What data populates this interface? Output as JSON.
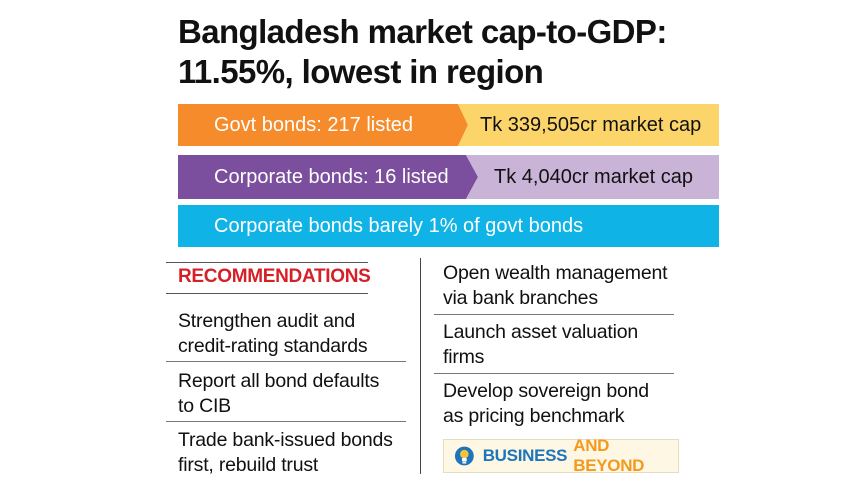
{
  "headline": {
    "line1": "Bangladesh market cap-to-GDP:",
    "line2": "11.55%, lowest in region"
  },
  "bars": {
    "govt": {
      "label": "Govt bonds: 217 listed",
      "value": "Tk 339,505cr market cap"
    },
    "corporate": {
      "label": "Corporate bonds: 16 listed",
      "value": "Tk 4,040cr market cap"
    },
    "share": {
      "label": "Corporate bonds barely 1% of govt bonds"
    }
  },
  "colors": {
    "govt_label": "#f68b2b",
    "govt_value": "#fbd56a",
    "corp_label": "#7b4f9e",
    "corp_value": "#c9b4d8",
    "share": "#10b3e6",
    "heading": "#d62027"
  },
  "recommendations": {
    "heading": "RECOMMENDATIONS",
    "left": [
      {
        "line1": "Strengthen audit and",
        "line2": "credit-rating standards"
      },
      {
        "line1": "Report all bond defaults",
        "line2": "to CIB"
      },
      {
        "line1": "Trade bank-issued bonds",
        "line2": "first, rebuild trust"
      }
    ],
    "right": [
      {
        "line1": "Open wealth management",
        "line2": "via bank branches"
      },
      {
        "line1": "Launch asset valuation",
        "line2": "firms"
      },
      {
        "line1": "Develop sovereign bond",
        "line2": "as pricing benchmark"
      }
    ]
  },
  "badge": {
    "icon": "lightbulb-gear-icon",
    "word1": "BUSINESS",
    "word2": "AND BEYOND"
  }
}
